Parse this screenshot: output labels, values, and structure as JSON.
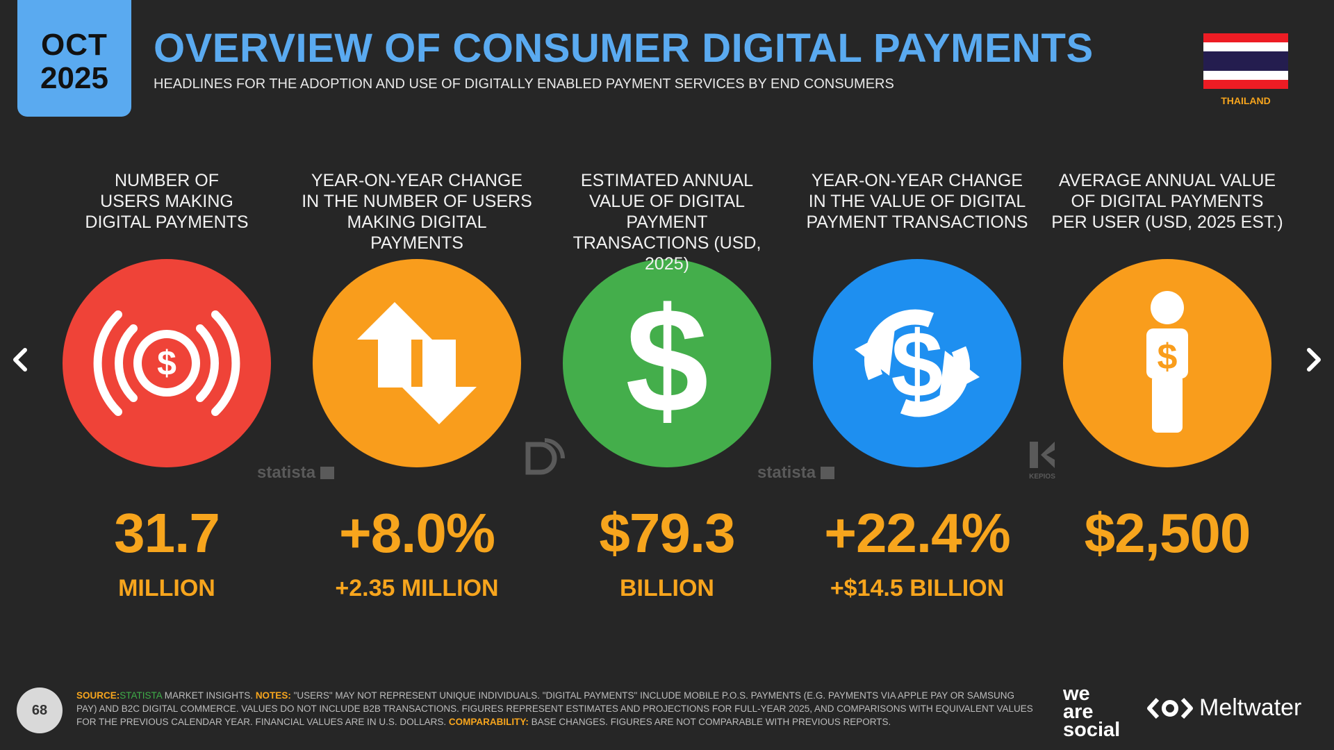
{
  "header": {
    "month": "OCT",
    "year": "2025",
    "title": "OVERVIEW OF CONSUMER DIGITAL PAYMENTS",
    "subtitle": "HEADLINES FOR THE ADOPTION AND USE OF DIGITALLY ENABLED PAYMENT SERVICES BY END CONSUMERS",
    "country": "THAILAND"
  },
  "colors": {
    "accent_blue": "#5aaaf0",
    "orange": "#f7a51d",
    "red": "#ef4338",
    "green": "#44ae4b",
    "blue": "#1e8ff0"
  },
  "stats": [
    {
      "label_lines": [
        "NUMBER OF",
        "USERS MAKING",
        "DIGITAL PAYMENTS"
      ],
      "value": "31.7",
      "unit": "MILLION",
      "icon": "payment-signal-icon",
      "color": "#ef4338",
      "source_mark": "statista"
    },
    {
      "label_lines": [
        "YEAR-ON-YEAR CHANGE",
        "IN THE NUMBER OF USERS",
        "MAKING DIGITAL PAYMENTS"
      ],
      "value": "+8.0%",
      "unit": "+2.35 MILLION",
      "icon": "up-down-arrows-icon",
      "color": "#f99d1c",
      "source_mark": "datareportal-logo"
    },
    {
      "label_lines": [
        "ESTIMATED ANNUAL",
        "VALUE OF DIGITAL PAYMENT",
        "TRANSACTIONS (USD, 2025)"
      ],
      "value": "$79.3",
      "unit": "BILLION",
      "icon": "dollar-icon",
      "color": "#44ae4b",
      "source_mark": "statista"
    },
    {
      "label_lines": [
        "YEAR-ON-YEAR CHANGE",
        "IN THE VALUE OF DIGITAL",
        "PAYMENT TRANSACTIONS"
      ],
      "value": "+22.4%",
      "unit": "+$14.5 BILLION",
      "icon": "dollar-cycle-icon",
      "color": "#1e8ff0",
      "source_mark": "kepios"
    },
    {
      "label_lines": [
        "AVERAGE ANNUAL VALUE",
        "OF DIGITAL PAYMENTS",
        "PER USER (USD, 2025 EST.)"
      ],
      "value": "$2,500",
      "unit": "",
      "icon": "person-dollar-icon",
      "color": "#f99d1c",
      "source_mark": ""
    }
  ],
  "watermarks": {
    "statista": "statista",
    "kepios": "KEPIOS"
  },
  "footer": {
    "page_number": "68",
    "source_key": "SOURCE:",
    "source_name": "STATISTA",
    "source_rest": " MARKET INSIGHTS. ",
    "notes_key": "NOTES:",
    "notes_text": " \"USERS\" MAY NOT REPRESENT UNIQUE INDIVIDUALS. \"DIGITAL PAYMENTS\" INCLUDE MOBILE P.O.S. PAYMENTS (E.G. PAYMENTS VIA APPLE PAY OR SAMSUNG PAY) AND B2C DIGITAL COMMERCE. VALUES DO NOT INCLUDE B2B TRANSACTIONS. FIGURES REPRESENT ESTIMATES AND PROJECTIONS FOR FULL-YEAR 2025, AND COMPARISONS WITH EQUIVALENT VALUES FOR THE PREVIOUS CALENDAR YEAR. FINANCIAL VALUES ARE IN U.S. DOLLARS. ",
    "comparability_key": "COMPARABILITY:",
    "comparability_text": " BASE CHANGES. FIGURES ARE NOT COMPARABLE WITH PREVIOUS REPORTS.",
    "brand1_lines": [
      "we",
      "are",
      "social"
    ],
    "brand2": "Meltwater"
  }
}
